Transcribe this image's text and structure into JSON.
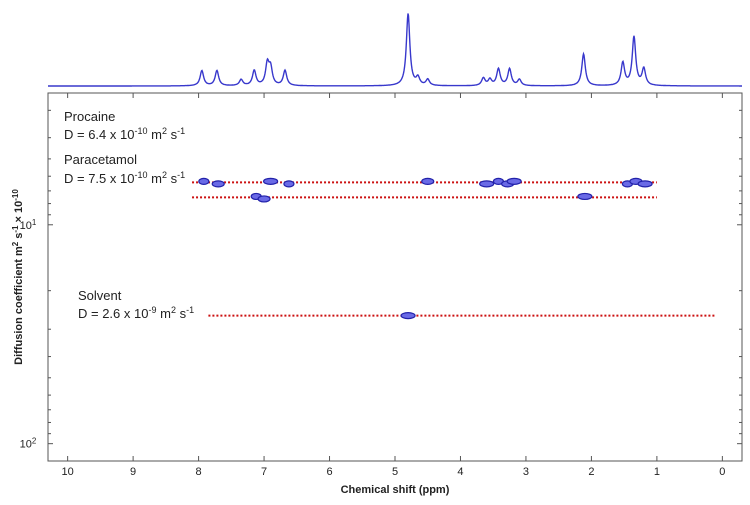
{
  "chart_data": {
    "type": "scatter",
    "subtype": "2D DOSY NMR spectrum with 1D projection",
    "xlabel": "Chemical shift (ppm)",
    "ylabel_parts": {
      "main": "Diffusion coefficient m",
      "exp1": "2",
      "mid": " s",
      "exp2": "-1",
      "tail": " × 10",
      "exp3": "-10"
    },
    "x_axis": {
      "lim": [
        10.3,
        -0.3
      ],
      "reversed": true,
      "ticks": [
        10,
        9,
        8,
        7,
        6,
        5,
        4,
        3,
        2,
        1,
        0
      ],
      "tick_labels": [
        "10",
        "9",
        "8",
        "7",
        "6",
        "5",
        "4",
        "3",
        "2",
        "1",
        "0"
      ]
    },
    "y_axis": {
      "scale": "log",
      "lim": [
        2.5,
        120
      ],
      "inverted": true,
      "ticks": [
        10,
        100
      ],
      "tick_labels": [
        {
          "base": "10",
          "exp": "1"
        },
        {
          "base": "10",
          "exp": "2"
        }
      ]
    },
    "grid": false,
    "series": [
      {
        "name": "Procaine",
        "D_label": {
          "prefix": "D = 6.4 x 10",
          "exp1": "-10",
          "unit": " m",
          "exp2": "2",
          "mid": " s",
          "exp3": "-1"
        },
        "D_value": 6.4,
        "line_range": [
          8.1,
          1.0
        ],
        "peaks": [
          7.92,
          7.7,
          6.9,
          6.62,
          4.5,
          3.6,
          3.42,
          3.28,
          3.18,
          1.45,
          1.32,
          1.18
        ]
      },
      {
        "name": "Paracetamol",
        "D_label": {
          "prefix": "D = 7.5 x 10",
          "exp1": "-10",
          "unit": " m",
          "exp2": "2",
          "mid": " s",
          "exp3": "-1"
        },
        "D_value": 7.5,
        "line_range": [
          8.1,
          1.0
        ],
        "peaks": [
          7.12,
          7.0,
          2.1
        ]
      },
      {
        "name": "Solvent",
        "D_label": {
          "prefix": "D = 2.6 x 10",
          "exp1": "-9",
          "unit": " m",
          "exp2": "2",
          "mid": " s",
          "exp3": "-1"
        },
        "D_value": 26,
        "line_range": [
          7.85,
          0.1
        ],
        "peaks": [
          4.8
        ]
      }
    ],
    "projection_peaks": [
      {
        "ppm": 7.95,
        "height": 0.2
      },
      {
        "ppm": 7.72,
        "height": 0.2
      },
      {
        "ppm": 7.35,
        "height": 0.08
      },
      {
        "ppm": 7.15,
        "height": 0.2
      },
      {
        "ppm": 6.95,
        "height": 0.28
      },
      {
        "ppm": 6.9,
        "height": 0.22
      },
      {
        "ppm": 6.68,
        "height": 0.2
      },
      {
        "ppm": 4.8,
        "height": 0.95
      },
      {
        "ppm": 4.65,
        "height": 0.1
      },
      {
        "ppm": 4.5,
        "height": 0.08
      },
      {
        "ppm": 3.65,
        "height": 0.1
      },
      {
        "ppm": 3.55,
        "height": 0.08
      },
      {
        "ppm": 3.42,
        "height": 0.22
      },
      {
        "ppm": 3.25,
        "height": 0.22
      },
      {
        "ppm": 3.1,
        "height": 0.08
      },
      {
        "ppm": 2.12,
        "height": 0.42
      },
      {
        "ppm": 1.52,
        "height": 0.3
      },
      {
        "ppm": 1.35,
        "height": 0.64
      },
      {
        "ppm": 1.2,
        "height": 0.22
      }
    ],
    "colors": {
      "spectrum": "#3838cc",
      "contour": "#2222aa",
      "guide_line": "#cc1111",
      "axis": "#555555"
    }
  }
}
